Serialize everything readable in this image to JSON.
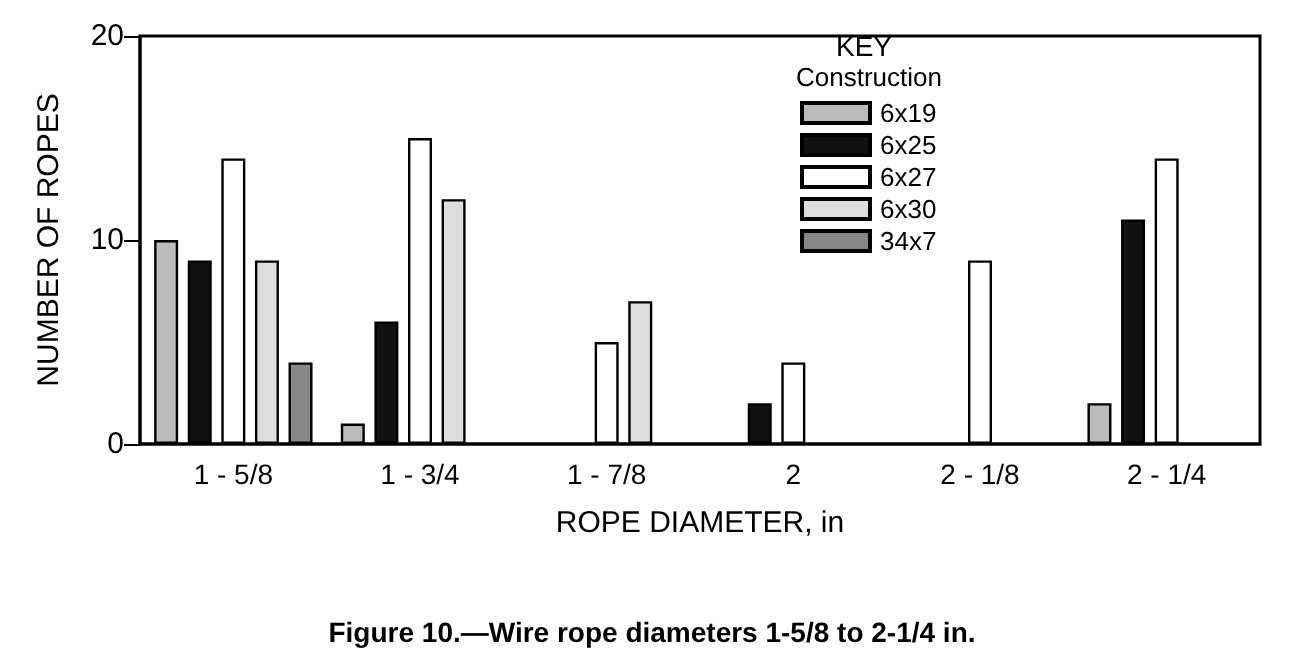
{
  "chart_data": {
    "type": "bar",
    "title": "Figure 10.—Wire rope diameters 1-5/8 to 2-1/4 in.",
    "xlabel": "ROPE DIAMETER, in",
    "ylabel": "NUMBER OF ROPES",
    "legend_title": "KEY",
    "annotations": [
      "Construction"
    ],
    "categories": [
      "1 - 5/8",
      "1 - 3/4",
      "1 - 7/8",
      "2",
      "2 - 1/8",
      "2 - 1/4"
    ],
    "series": [
      {
        "name": "6x19",
        "color": "#bbbbbb",
        "values": [
          10,
          1,
          null,
          null,
          null,
          2
        ]
      },
      {
        "name": "6x25",
        "color": "#111111",
        "values": [
          9,
          6,
          null,
          2,
          null,
          11
        ]
      },
      {
        "name": "6x27",
        "color": "#ffffff",
        "values": [
          14,
          15,
          5,
          4,
          9,
          14
        ]
      },
      {
        "name": "6x30",
        "color": "#dddddd",
        "values": [
          9,
          12,
          7,
          null,
          null,
          null
        ]
      },
      {
        "name": "34x7",
        "color": "#888888",
        "values": [
          4,
          null,
          null,
          null,
          null,
          null
        ]
      }
    ],
    "ylim": [
      0,
      20
    ],
    "yticks": [
      0,
      10,
      20
    ],
    "grid": false,
    "legend": "top right"
  }
}
